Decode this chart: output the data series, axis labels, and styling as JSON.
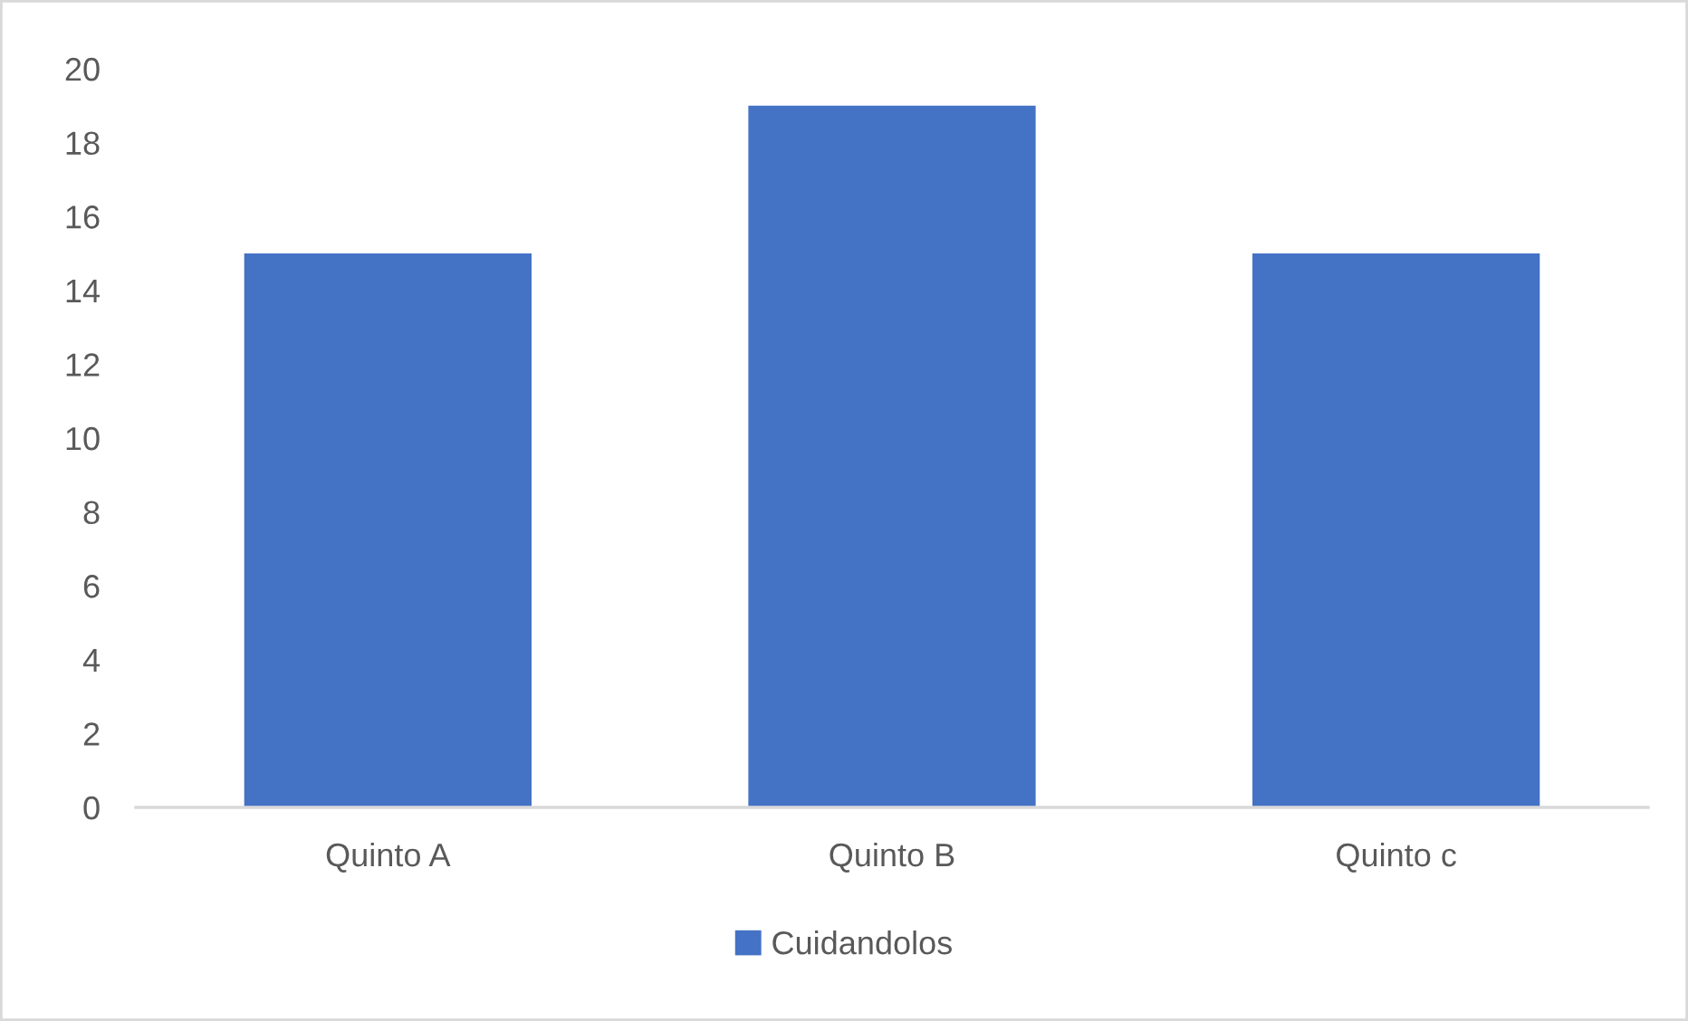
{
  "chart_data": {
    "type": "bar",
    "categories": [
      "Quinto A",
      "Quinto B",
      "Quinto c"
    ],
    "series": [
      {
        "name": "Cuidandolos",
        "color": "#4472c4",
        "values": [
          15,
          19,
          15
        ]
      }
    ],
    "ylim": [
      0,
      20
    ],
    "yticks": [
      0,
      2,
      4,
      6,
      8,
      10,
      12,
      14,
      16,
      18,
      20
    ],
    "grid": false,
    "legend": "bottom"
  }
}
